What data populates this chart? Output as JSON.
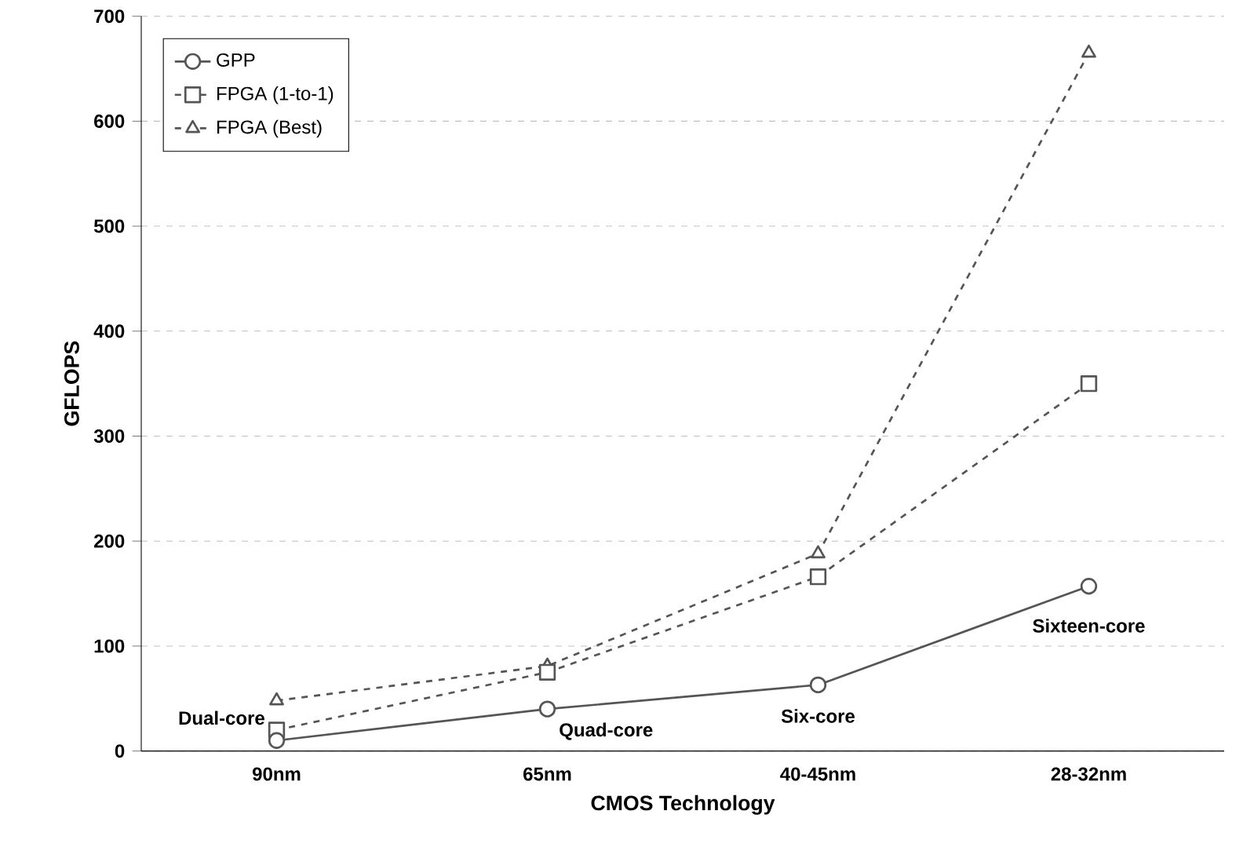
{
  "chart_data": {
    "type": "line",
    "xlabel": "CMOS Technology",
    "ylabel": "GFLOPS",
    "categories": [
      "90nm",
      "65nm",
      "40-45nm",
      "28-32nm"
    ],
    "series": [
      {
        "name": "GPP",
        "color": "#555555",
        "values": [
          10,
          40,
          63,
          157
        ],
        "marker": "circle",
        "line_style": "solid"
      },
      {
        "name": "FPGA (1-to-1)",
        "color": "#555555",
        "values": [
          20,
          75,
          166,
          350
        ],
        "marker": "square",
        "line_style": "dashed"
      },
      {
        "name": "FPGA (Best)",
        "color": "#555555",
        "values": [
          48,
          81,
          188,
          665
        ],
        "marker": "triangle",
        "line_style": "dashed"
      }
    ],
    "ylim": [
      0,
      700
    ],
    "yticks": [
      0,
      100,
      200,
      300,
      400,
      500,
      600,
      700
    ],
    "grid": "y",
    "legend": "top left",
    "annotations": [
      {
        "text": "Dual-core",
        "x": "90nm",
        "y": 10
      },
      {
        "text": "Quad-core",
        "x": "65nm",
        "y": 40
      },
      {
        "text": "Six-core",
        "x": "40-45nm",
        "y": 63
      },
      {
        "text": "Sixteen-core",
        "x": "28-32nm",
        "y": 157
      }
    ]
  }
}
